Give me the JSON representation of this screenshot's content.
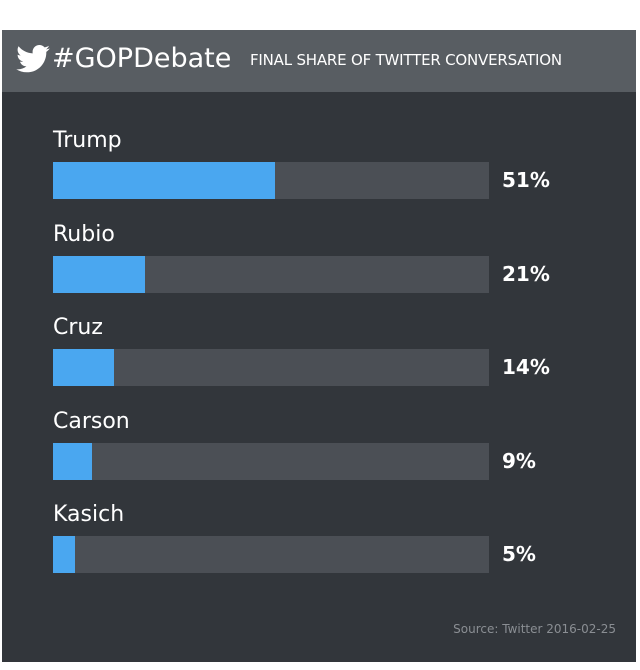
{
  "header": {
    "hashtag": "#GOPDebate",
    "subtitle": "FINAL SHARE OF TWITTER CONVERSATION",
    "logo_icon": "twitter-bird-icon"
  },
  "chart_data": {
    "type": "bar",
    "orientation": "horizontal",
    "categories": [
      "Trump",
      "Rubio",
      "Cruz",
      "Carson",
      "Kasich"
    ],
    "values": [
      51,
      21,
      14,
      9,
      5
    ],
    "value_labels": [
      "51%",
      "21%",
      "14%",
      "9%",
      "5%"
    ],
    "unit": "%",
    "xlim": [
      0,
      100
    ],
    "grid": false,
    "colors": {
      "bar": "#4aa7f0",
      "track": "#4b4f55",
      "background": "#32363b",
      "header": "#585d62"
    }
  },
  "footer": {
    "source": "Source: Twitter 2016-02-25"
  }
}
